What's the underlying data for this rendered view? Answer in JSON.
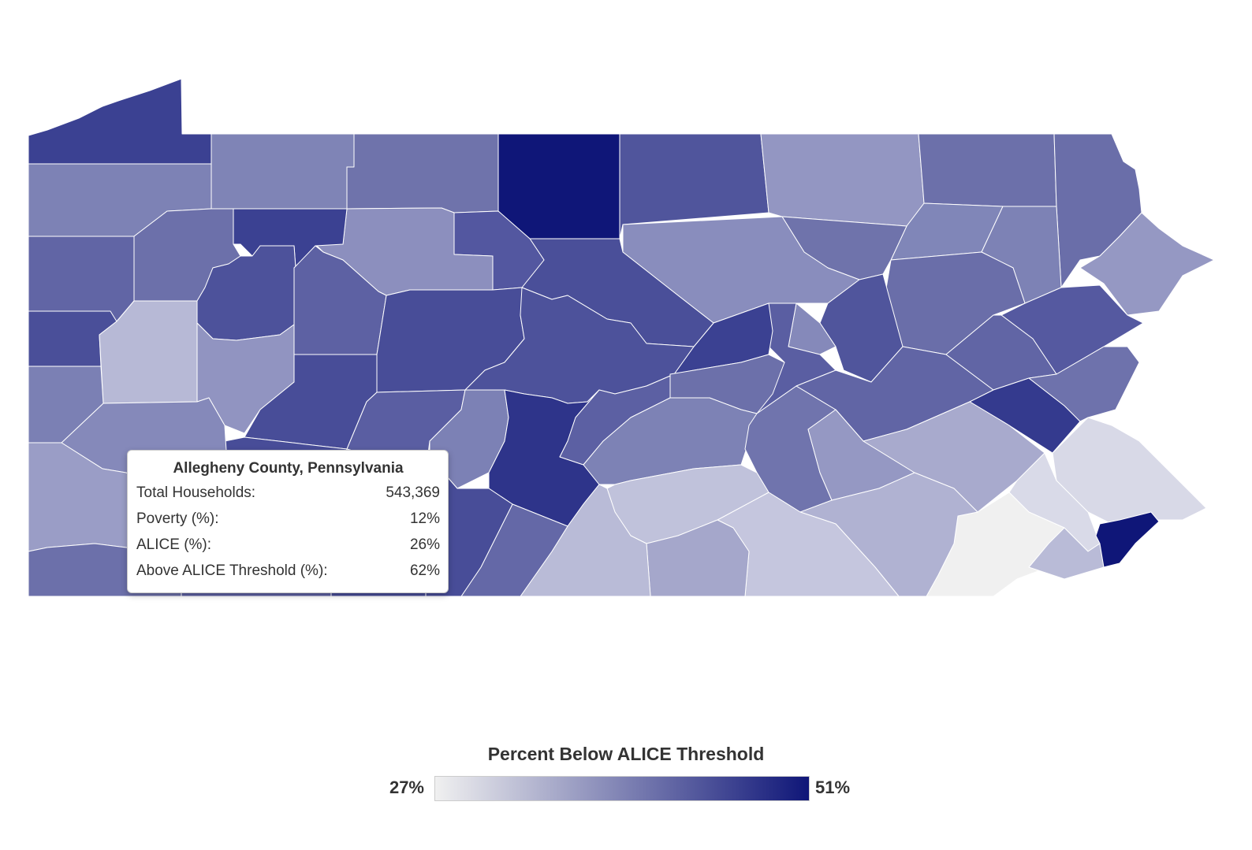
{
  "tooltip": {
    "title": "Allegheny County, Pennsylvania",
    "rows": [
      {
        "label": "Total Households:",
        "value": "543,369"
      },
      {
        "label": "Poverty (%):",
        "value": "12%"
      },
      {
        "label": "ALICE (%):",
        "value": "26%"
      },
      {
        "label": "Above ALICE Threshold (%):",
        "value": "62%"
      }
    ]
  },
  "legend": {
    "title": "Percent Below ALICE Threshold",
    "min_label": "27%",
    "max_label": "51%",
    "min_value": 27,
    "max_value": 51,
    "color_low": "#f0f0f0",
    "color_high": "#0f1678"
  },
  "colors": {
    "border": "#ffffff"
  }
}
